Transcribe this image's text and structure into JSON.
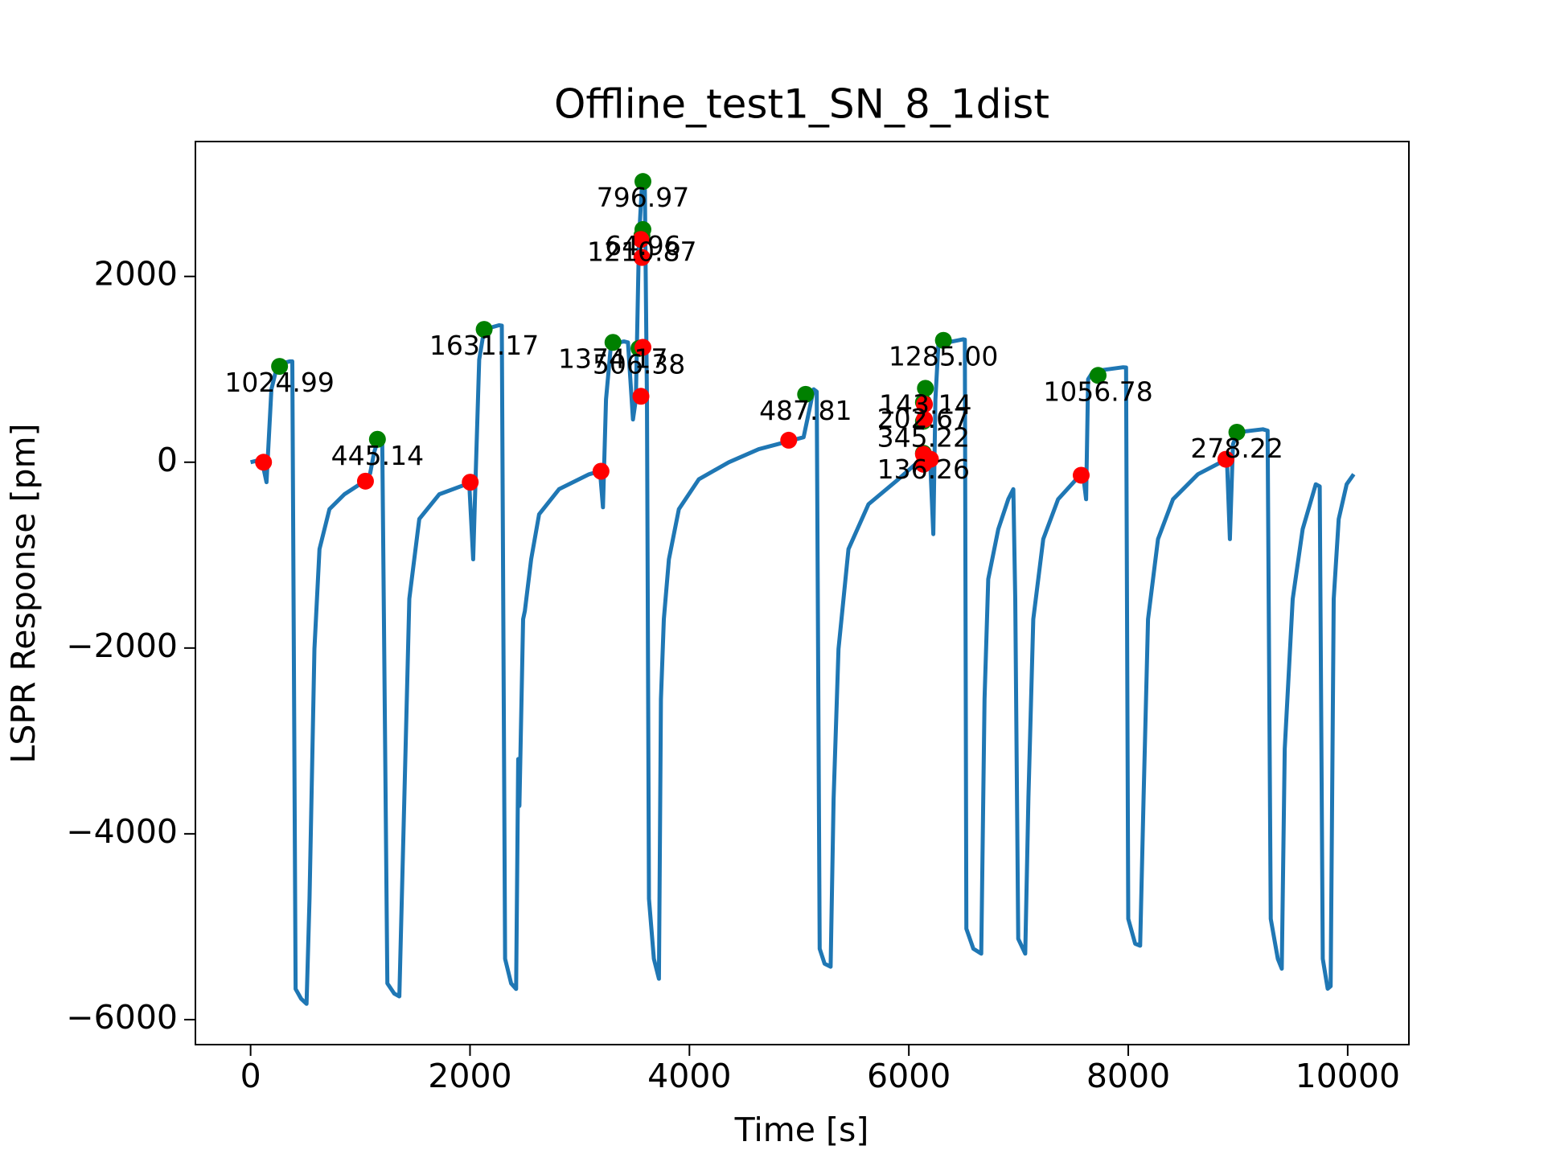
{
  "chart_data": {
    "type": "line",
    "title": "Offline_test1_SN_8_1dist",
    "xlabel": "Time [s]",
    "ylabel": "LSPR Response [pm]",
    "xlim": [
      -503,
      10558
    ],
    "ylim": [
      -6269,
      3452
    ],
    "xticks": [
      0,
      2000,
      4000,
      6000,
      8000,
      10000
    ],
    "yticks": [
      {
        "value": -6000,
        "label": "−6000"
      },
      {
        "value": -4000,
        "label": "−4000"
      },
      {
        "value": -2000,
        "label": "−2000"
      },
      0,
      2000
    ],
    "series": [
      {
        "type": "line",
        "color": "#1f77b4",
        "x": [
          0,
          100,
          145,
          190,
          245,
          355,
          380,
          410,
          460,
          510,
          537,
          582,
          628,
          719,
          855,
          1037,
          1090,
          1125,
          1160,
          1200,
          1247,
          1310,
          1356,
          1401,
          1447,
          1538,
          1720,
          1993,
          2029,
          2050,
          2084,
          2129,
          2266,
          2290,
          2320,
          2375,
          2420,
          2439,
          2450,
          2484,
          2500,
          2557,
          2630,
          2812,
          3085,
          3185,
          3212,
          3240,
          3285,
          3403,
          3440,
          3485,
          3512,
          3540,
          3567,
          3594,
          3613,
          3631,
          3676,
          3722,
          3740,
          3767,
          3813,
          3904,
          4086,
          4359,
          4632,
          4905,
          5041,
          5132,
          5160,
          5187,
          5232,
          5287,
          5314,
          5359,
          5450,
          5632,
          5905,
          6132,
          6170,
          6197,
          6223,
          6242,
          6269,
          6496,
          6510,
          6524,
          6588,
          6660,
          6690,
          6724,
          6815,
          6906,
          6952,
          6970,
          6997,
          7061,
          7090,
          7134,
          7225,
          7361,
          7543,
          7588,
          7616,
          7634,
          7680,
          7953,
          7980,
          8000,
          8063,
          8108,
          8140,
          8180,
          8271,
          8408,
          8635,
          8863,
          8900,
          8926,
          8954,
          8999,
          9227,
          9270,
          9299,
          9363,
          9399,
          9426,
          9499,
          9590,
          9709,
          9745,
          9773,
          9818,
          9845,
          9873,
          9918,
          9991,
          10055
        ],
        "values": [
          0,
          30,
          -215,
          785,
          1050,
          1085,
          1085,
          -5670,
          -5775,
          -5830,
          -4700,
          -2010,
          -935,
          -505,
          -345,
          -205,
          -120,
          100,
          240,
          260,
          -5610,
          -5720,
          -5750,
          -3620,
          -1470,
          -610,
          -345,
          -225,
          -1045,
          -200,
          1105,
          1430,
          1475,
          1470,
          -5345,
          -5610,
          -5670,
          -3195,
          -3700,
          -1690,
          -1600,
          -1045,
          -560,
          -290,
          -130,
          -95,
          -485,
          677,
          1270,
          1300,
          1290,
          460,
          677,
          2400,
          2990,
          2935,
          677,
          -4700,
          -5345,
          -5560,
          -2550,
          -1690,
          -1045,
          -505,
          -183,
          0,
          140,
          226,
          269,
          785,
          760,
          -5237,
          -5398,
          -5430,
          -3624,
          -2010,
          -935,
          -452,
          -183,
          54,
          100,
          -50,
          -774,
          677,
          1270,
          1323,
          1320,
          -5022,
          -5237,
          -5290,
          -2550,
          -1258,
          -720,
          -398,
          -290,
          -1473,
          -5130,
          -5290,
          -3600,
          -1690,
          -828,
          -398,
          -161,
          -129,
          -398,
          893,
          979,
          1022,
          1020,
          -4915,
          -5183,
          -5204,
          -3600,
          -1690,
          -828,
          -398,
          -129,
          11,
          15,
          -828,
          194,
          323,
          355,
          340,
          -4915,
          -5345,
          -5452,
          -3086,
          -1473,
          -720,
          -237,
          -260,
          -5345,
          -5667,
          -5640,
          -1473,
          -613,
          -237,
          -129
        ]
      },
      {
        "type": "scatter",
        "color": "green",
        "x": [
          264,
          1156,
          2129,
          3303,
          3576,
          3576,
          3567,
          3540,
          5059,
          6151,
          6133,
          6133,
          6133,
          6315,
          7725,
          8990
        ],
        "values": [
          1032,
          247,
          1430,
          1290,
          3022,
          2505,
          2441,
          1226,
          731,
          796,
          645,
          441,
          97,
          1312,
          935,
          323
        ],
        "annotations": [
          "1024.99",
          "445.14",
          "1631.17",
          "1374.17",
          "796.97",
          "64.96",
          "1210.87",
          "506.38",
          "487.81",
          "143.14",
          "202.67",
          "345.22",
          "136.26",
          "1285.00",
          "1056.78",
          "278.22"
        ]
      },
      {
        "type": "scatter",
        "color": "red",
        "x": [
          118,
          1047,
          2002,
          3194,
          3558,
          3576,
          3567,
          3558,
          4905,
          6142,
          6142,
          6133,
          6197,
          6133,
          7571,
          8890
        ],
        "values": [
          0,
          -204,
          -215,
          -97,
          710,
          1237,
          2204,
          2398,
          237,
          624,
          462,
          86,
          32,
          -22,
          -140,
          32
        ]
      }
    ]
  }
}
